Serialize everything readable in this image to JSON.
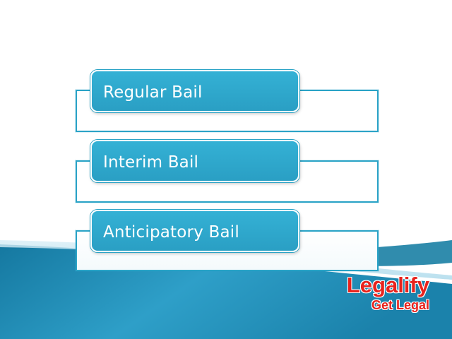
{
  "diagram": {
    "items": [
      {
        "label": "Regular Bail"
      },
      {
        "label": "Interim Bail"
      },
      {
        "label": "Anticipatory Bail"
      }
    ]
  },
  "brand": {
    "name": "Legalify",
    "tagline": "Get Legal"
  },
  "colors": {
    "accent": "#2aa3c6",
    "box_fill": "#2fa7cb",
    "brand_red": "#e8231d",
    "wave_dark": "#1a7fa4"
  }
}
